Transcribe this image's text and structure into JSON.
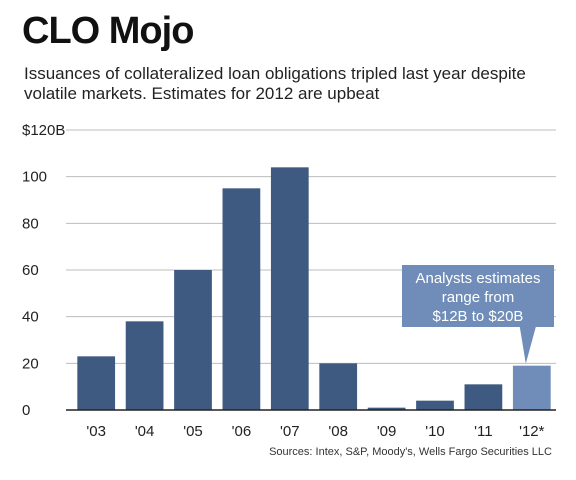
{
  "header": {
    "title": "CLO Mojo",
    "subtitle": "Issuances of collateralized loan obligations tripled last year despite volatile markets. Estimates for 2012 are upbeat"
  },
  "chart_data": {
    "type": "bar",
    "categories": [
      "'03",
      "'04",
      "'05",
      "'06",
      "'07",
      "'08",
      "'09",
      "'10",
      "'11",
      "'12*"
    ],
    "values": [
      23,
      38,
      60,
      95,
      104,
      20,
      1,
      4,
      11,
      19
    ],
    "ylim": [
      0,
      120
    ],
    "yticks": [
      {
        "value": 0,
        "label": "0"
      },
      {
        "value": 20,
        "label": "20"
      },
      {
        "value": 40,
        "label": "40"
      },
      {
        "value": 60,
        "label": "60"
      },
      {
        "value": 80,
        "label": "80"
      },
      {
        "value": 100,
        "label": "100"
      },
      {
        "value": 120,
        "label": "$120B"
      }
    ],
    "grid": true,
    "annotation": {
      "lines": [
        "Analysts estimates",
        "range from",
        "$12B to $20B"
      ],
      "target_category": "'12*"
    },
    "source": "Sources: Intex, S&P, Moody's, Wells Fargo Securities LLC"
  },
  "colors": {
    "bar": "#3f5a80",
    "bar_highlight": "#6f8db8",
    "callout": "#6f8db8",
    "grid": "#bdbdbd",
    "axis": "#222222"
  }
}
